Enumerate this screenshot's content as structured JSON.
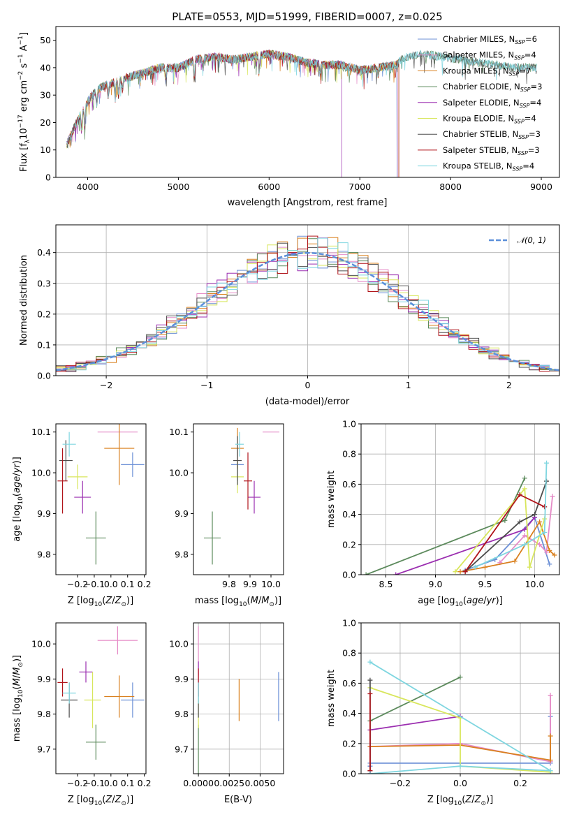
{
  "title": "PLATE=0553, MJD=51999, FIBERID=0007, z=0.025",
  "colors": [
    "#6b8fd6",
    "#e58bc7",
    "#d9801f",
    "#5c8a5c",
    "#9b2eb0",
    "#d8e65c",
    "#4d4d4d",
    "#b0141a",
    "#7fd6e0"
  ],
  "chart_data": [
    {
      "id": "spectrum",
      "type": "line",
      "xlabel": "wavelength [Angstrom, rest frame]",
      "ylabel": "Flux [f_λ 10^-17 erg cm^-2 s^-1 A^-1]",
      "xlim": [
        3650,
        9200
      ],
      "ylim": [
        0,
        55
      ],
      "xticks": [
        4000,
        5000,
        6000,
        7000,
        8000,
        9000
      ],
      "yticks": [
        0,
        10,
        20,
        30,
        40,
        50
      ],
      "legend_position": "top-right",
      "series": [
        {
          "name": "Chabrier MILES, N_SSP=6"
        },
        {
          "name": "Salpeter MILES, N_SSP=4"
        },
        {
          "name": "Kroupa MILES, N_SSP=7"
        },
        {
          "name": "Chabrier ELODIE, N_SSP=3"
        },
        {
          "name": "Salpeter ELODIE, N_SSP=4"
        },
        {
          "name": "Kroupa ELODIE, N_SSP=4"
        },
        {
          "name": "Chabrier STELIB, N_SSP=3"
        },
        {
          "name": "Salpeter STELIB, N_SSP=3"
        },
        {
          "name": "Kroupa STELIB, N_SSP=4"
        }
      ],
      "continuum": [
        [
          3770,
          12
        ],
        [
          3850,
          18
        ],
        [
          3950,
          25
        ],
        [
          4050,
          30
        ],
        [
          4150,
          33
        ],
        [
          4250,
          34
        ],
        [
          4400,
          36
        ],
        [
          4600,
          38
        ],
        [
          4800,
          40
        ],
        [
          5000,
          40
        ],
        [
          5200,
          43
        ],
        [
          5400,
          44
        ],
        [
          5600,
          43
        ],
        [
          5800,
          44
        ],
        [
          6000,
          45
        ],
        [
          6200,
          44
        ],
        [
          6400,
          42
        ],
        [
          6600,
          41
        ],
        [
          6800,
          41
        ],
        [
          7000,
          39
        ],
        [
          7200,
          40
        ],
        [
          7400,
          41
        ],
        [
          7500,
          44
        ],
        [
          7700,
          45
        ],
        [
          7900,
          44
        ],
        [
          8100,
          43
        ],
        [
          8300,
          42
        ],
        [
          8500,
          41
        ],
        [
          8700,
          40
        ],
        [
          8900,
          40
        ]
      ],
      "line_end_wavelengths": [
        7410,
        7420,
        7430,
        8950,
        6800,
        7430,
        8950,
        7430,
        8950
      ]
    },
    {
      "id": "residuals",
      "type": "histogram",
      "xlabel": "(data-model)/error",
      "ylabel": "Normed distribution",
      "xlim": [
        -2.5,
        2.5
      ],
      "ylim": [
        0,
        0.49
      ],
      "xticks": [
        -2,
        -1,
        0,
        1,
        2
      ],
      "yticks": [
        0.0,
        0.1,
        0.2,
        0.3,
        0.4
      ],
      "grid": true,
      "bin_width": 0.1,
      "reference": {
        "name": "𝒩(0, 1)",
        "mean": 0,
        "sigma": 1
      },
      "legend_position": "top-right"
    },
    {
      "id": "age-vs-Z",
      "type": "errorbar",
      "xlabel": "Z [log10(Z/Z⊙)]",
      "ylabel": "age [log10(age/yr)]",
      "xlim": [
        -0.33,
        0.21
      ],
      "ylim": [
        9.75,
        10.12
      ],
      "xticks": [
        -0.2,
        -0.1,
        0.0,
        0.1,
        0.2
      ],
      "yticks": [
        9.8,
        9.9,
        10.0,
        10.1
      ],
      "points": [
        {
          "x": 0.13,
          "y": 10.02,
          "xerr": 0.07,
          "yerr": 0.03
        },
        {
          "x": 0.04,
          "y": 10.1,
          "xerr": 0.12,
          "yerr": 0.0
        },
        {
          "x": 0.05,
          "y": 10.06,
          "xerr": 0.09,
          "yerr": 0.09
        },
        {
          "x": -0.09,
          "y": 9.84,
          "xerr": 0.06,
          "yerr": 0.065
        },
        {
          "x": -0.17,
          "y": 9.94,
          "xerr": 0.05,
          "yerr": 0.04
        },
        {
          "x": -0.2,
          "y": 9.99,
          "xerr": 0.06,
          "yerr": 0.03
        },
        {
          "x": -0.27,
          "y": 10.03,
          "xerr": 0.04,
          "yerr": 0.05
        },
        {
          "x": -0.29,
          "y": 9.98,
          "xerr": 0.03,
          "yerr": 0.08
        },
        {
          "x": -0.25,
          "y": 10.07,
          "xerr": 0.04,
          "yerr": 0.03
        }
      ]
    },
    {
      "id": "age-vs-mass",
      "type": "errorbar",
      "xlabel": "mass [log10(M/M⊙)]",
      "ylabel": "",
      "xlim": [
        9.63,
        10.06
      ],
      "ylim": [
        9.75,
        10.12
      ],
      "xticks": [
        9.8,
        9.9,
        10.0
      ],
      "yticks": [
        9.8,
        9.9,
        10.0,
        10.1
      ],
      "points": [
        {
          "x": 9.84,
          "y": 10.02,
          "xerr": 0.03,
          "yerr": 0.04
        },
        {
          "x": 10.0,
          "y": 10.1,
          "xerr": 0.04,
          "yerr": 0.0
        },
        {
          "x": 9.84,
          "y": 10.06,
          "xerr": 0.03,
          "yerr": 0.05
        },
        {
          "x": 9.72,
          "y": 9.84,
          "xerr": 0.04,
          "yerr": 0.065
        },
        {
          "x": 9.92,
          "y": 9.94,
          "xerr": 0.03,
          "yerr": 0.04
        },
        {
          "x": 9.84,
          "y": 9.99,
          "xerr": 0.03,
          "yerr": 0.04
        },
        {
          "x": 9.84,
          "y": 10.03,
          "xerr": 0.02,
          "yerr": 0.06
        },
        {
          "x": 9.89,
          "y": 9.98,
          "xerr": 0.02,
          "yerr": 0.07
        },
        {
          "x": 9.85,
          "y": 10.07,
          "xerr": 0.02,
          "yerr": 0.03
        }
      ]
    },
    {
      "id": "weight-vs-age",
      "type": "line",
      "xlabel": "age [log10(age/yr)]",
      "ylabel": "mass weight",
      "xlim": [
        8.25,
        10.25
      ],
      "ylim": [
        0,
        1
      ],
      "xticks": [
        8.5,
        9.0,
        9.5,
        10.0
      ],
      "yticks": [
        0.0,
        0.2,
        0.4,
        0.6,
        0.8,
        1.0
      ],
      "grid": true,
      "series": [
        {
          "values": [
            [
              9.3,
              0.03
            ],
            [
              9.6,
              0.1
            ],
            [
              10.0,
              0.38
            ],
            [
              10.15,
              0.07
            ]
          ]
        },
        {
          "values": [
            [
              9.65,
              0.08
            ],
            [
              9.9,
              0.26
            ],
            [
              10.05,
              0.2
            ],
            [
              10.12,
              0.15
            ],
            [
              10.18,
              0.52
            ]
          ]
        },
        {
          "values": [
            [
              9.25,
              0.02
            ],
            [
              9.5,
              0.05
            ],
            [
              9.8,
              0.09
            ],
            [
              10.05,
              0.35
            ],
            [
              10.15,
              0.16
            ],
            [
              10.2,
              0.13
            ]
          ]
        },
        {
          "values": [
            [
              8.3,
              0.0
            ],
            [
              9.7,
              0.36
            ],
            [
              9.9,
              0.64
            ]
          ]
        },
        {
          "values": [
            [
              8.6,
              0.0
            ],
            [
              9.9,
              0.3
            ],
            [
              10.0,
              0.38
            ]
          ]
        },
        {
          "values": [
            [
              9.2,
              0.02
            ],
            [
              9.9,
              0.57
            ],
            [
              9.95,
              0.05
            ],
            [
              10.1,
              0.37
            ]
          ]
        },
        {
          "values": [
            [
              9.3,
              0.02
            ],
            [
              9.85,
              0.35
            ],
            [
              10.0,
              0.4
            ],
            [
              10.12,
              0.62
            ]
          ]
        },
        {
          "values": [
            [
              9.3,
              0.02
            ],
            [
              9.85,
              0.53
            ],
            [
              10.1,
              0.45
            ]
          ]
        },
        {
          "values": [
            [
              9.4,
              0.05
            ],
            [
              9.9,
              0.2
            ],
            [
              10.1,
              0.28
            ],
            [
              10.12,
              0.74
            ]
          ]
        }
      ]
    },
    {
      "id": "mass-vs-Z",
      "type": "errorbar",
      "xlabel": "Z [log10(Z/Z⊙)]",
      "ylabel": "mass [log10(M/M⊙)]",
      "xlim": [
        -0.33,
        0.21
      ],
      "ylim": [
        9.63,
        10.06
      ],
      "xticks": [
        -0.2,
        -0.1,
        0.0,
        0.1,
        0.2
      ],
      "yticks": [
        9.7,
        9.8,
        9.9,
        10.0
      ],
      "points": [
        {
          "x": 0.13,
          "y": 9.84,
          "xerr": 0.07,
          "yerr": 0.05
        },
        {
          "x": 0.04,
          "y": 10.01,
          "xerr": 0.12,
          "yerr": 0.04
        },
        {
          "x": 0.05,
          "y": 9.85,
          "xerr": 0.09,
          "yerr": 0.06
        },
        {
          "x": -0.09,
          "y": 9.72,
          "xerr": 0.06,
          "yerr": 0.05
        },
        {
          "x": -0.15,
          "y": 9.92,
          "xerr": 0.04,
          "yerr": 0.03
        },
        {
          "x": -0.11,
          "y": 9.84,
          "xerr": 0.05,
          "yerr": 0.08
        },
        {
          "x": -0.25,
          "y": 9.84,
          "xerr": 0.05,
          "yerr": 0.05
        },
        {
          "x": -0.29,
          "y": 9.89,
          "xerr": 0.03,
          "yerr": 0.04
        },
        {
          "x": -0.25,
          "y": 9.86,
          "xerr": 0.04,
          "yerr": 0.03
        }
      ]
    },
    {
      "id": "mass-vs-ebv",
      "type": "errorbar",
      "xlabel": "E(B-V)",
      "ylabel": "",
      "xlim": [
        -0.0004,
        0.0069
      ],
      "ylim": [
        9.63,
        10.06
      ],
      "xticks": [
        0.0,
        0.0025,
        0.005
      ],
      "xtick_labels": [
        "0.0000",
        "0.0025",
        "0.0050"
      ],
      "yticks": [
        9.7,
        9.8,
        9.9,
        10.0
      ],
      "grid": true,
      "points": [
        {
          "x": 0.0065,
          "y": 9.85,
          "xerr": 0,
          "yerr": 0.07
        },
        {
          "x": 0.0,
          "y": 9.98,
          "xerr": 0,
          "yerr": 0.07
        },
        {
          "x": 0.0033,
          "y": 9.84,
          "xerr": 0,
          "yerr": 0.06
        },
        {
          "x": 0.0,
          "y": 9.7,
          "xerr": 0,
          "yerr": 0.07
        },
        {
          "x": 0.0,
          "y": 9.92,
          "xerr": 0,
          "yerr": 0.03
        },
        {
          "x": 0.0,
          "y": 9.8,
          "xerr": 0,
          "yerr": 0.04
        },
        {
          "x": 0.0,
          "y": 9.84,
          "xerr": 0,
          "yerr": 0.05
        },
        {
          "x": 0.0,
          "y": 9.89,
          "xerr": 0,
          "yerr": 0.04
        },
        {
          "x": 0.0,
          "y": 9.86,
          "xerr": 0,
          "yerr": 0.03
        }
      ]
    },
    {
      "id": "weight-vs-Z",
      "type": "line",
      "xlabel": "Z [log10(Z/Z⊙)]",
      "ylabel": "mass weight",
      "xlim": [
        -0.33,
        0.33
      ],
      "ylim": [
        0,
        1
      ],
      "xticks": [
        -0.2,
        0.0,
        0.2
      ],
      "yticks": [
        0.0,
        0.2,
        0.4,
        0.6,
        0.8,
        1.0
      ],
      "grid": true,
      "series": [
        {
          "values": [
            [
              -0.3,
              0.05
            ],
            [
              -0.3,
              0.07
            ],
            [
              0.3,
              0.07
            ],
            [
              0.3,
              0.38
            ]
          ]
        },
        {
          "values": [
            [
              -0.3,
              0.18
            ],
            [
              0.0,
              0.2
            ],
            [
              0.3,
              0.08
            ],
            [
              0.3,
              0.52
            ]
          ]
        },
        {
          "values": [
            [
              -0.3,
              0.18
            ],
            [
              0.0,
              0.19
            ],
            [
              0.3,
              0.09
            ],
            [
              0.3,
              0.25
            ]
          ]
        },
        {
          "values": [
            [
              -0.3,
              0.0
            ],
            [
              -0.3,
              0.35
            ],
            [
              0.0,
              0.64
            ]
          ]
        },
        {
          "values": [
            [
              -0.3,
              0.0
            ],
            [
              -0.3,
              0.29
            ],
            [
              0.0,
              0.38
            ]
          ]
        },
        {
          "values": [
            [
              -0.3,
              0.57
            ],
            [
              0.0,
              0.37
            ],
            [
              0.0,
              0.05
            ],
            [
              0.3,
              0.01
            ]
          ]
        },
        {
          "values": [
            [
              -0.3,
              0.02
            ],
            [
              -0.3,
              0.62
            ]
          ]
        },
        {
          "values": [
            [
              -0.3,
              0.02
            ],
            [
              -0.3,
              0.53
            ]
          ]
        },
        {
          "values": [
            [
              -0.3,
              0.0
            ],
            [
              0.0,
              0.05
            ],
            [
              0.3,
              0.02
            ],
            [
              -0.3,
              0.74
            ]
          ]
        }
      ]
    }
  ]
}
